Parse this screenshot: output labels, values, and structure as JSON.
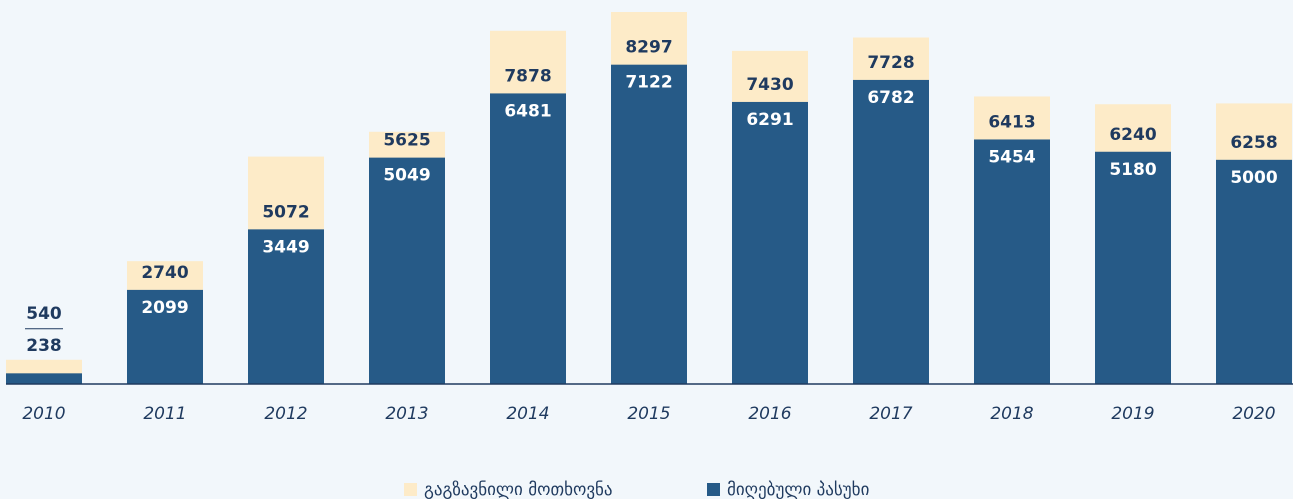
{
  "chart_data": {
    "type": "overlap-bar",
    "categories": [
      "2010",
      "2011",
      "2012",
      "2013",
      "2014",
      "2015",
      "2016",
      "2017",
      "2018",
      "2019",
      "2020"
    ],
    "series": [
      {
        "name": "გაგზავნილი მოთხოვნა",
        "color": "#fdebc8",
        "values": [
          540,
          2740,
          5072,
          5625,
          7878,
          8297,
          7430,
          7728,
          6413,
          6240,
          6258
        ]
      },
      {
        "name": "მიღებული პასუხი",
        "color": "#265a87",
        "values": [
          238,
          2099,
          3449,
          5049,
          6481,
          7122,
          6291,
          6782,
          5454,
          5180,
          5000
        ]
      }
    ],
    "legend": "bottom"
  }
}
